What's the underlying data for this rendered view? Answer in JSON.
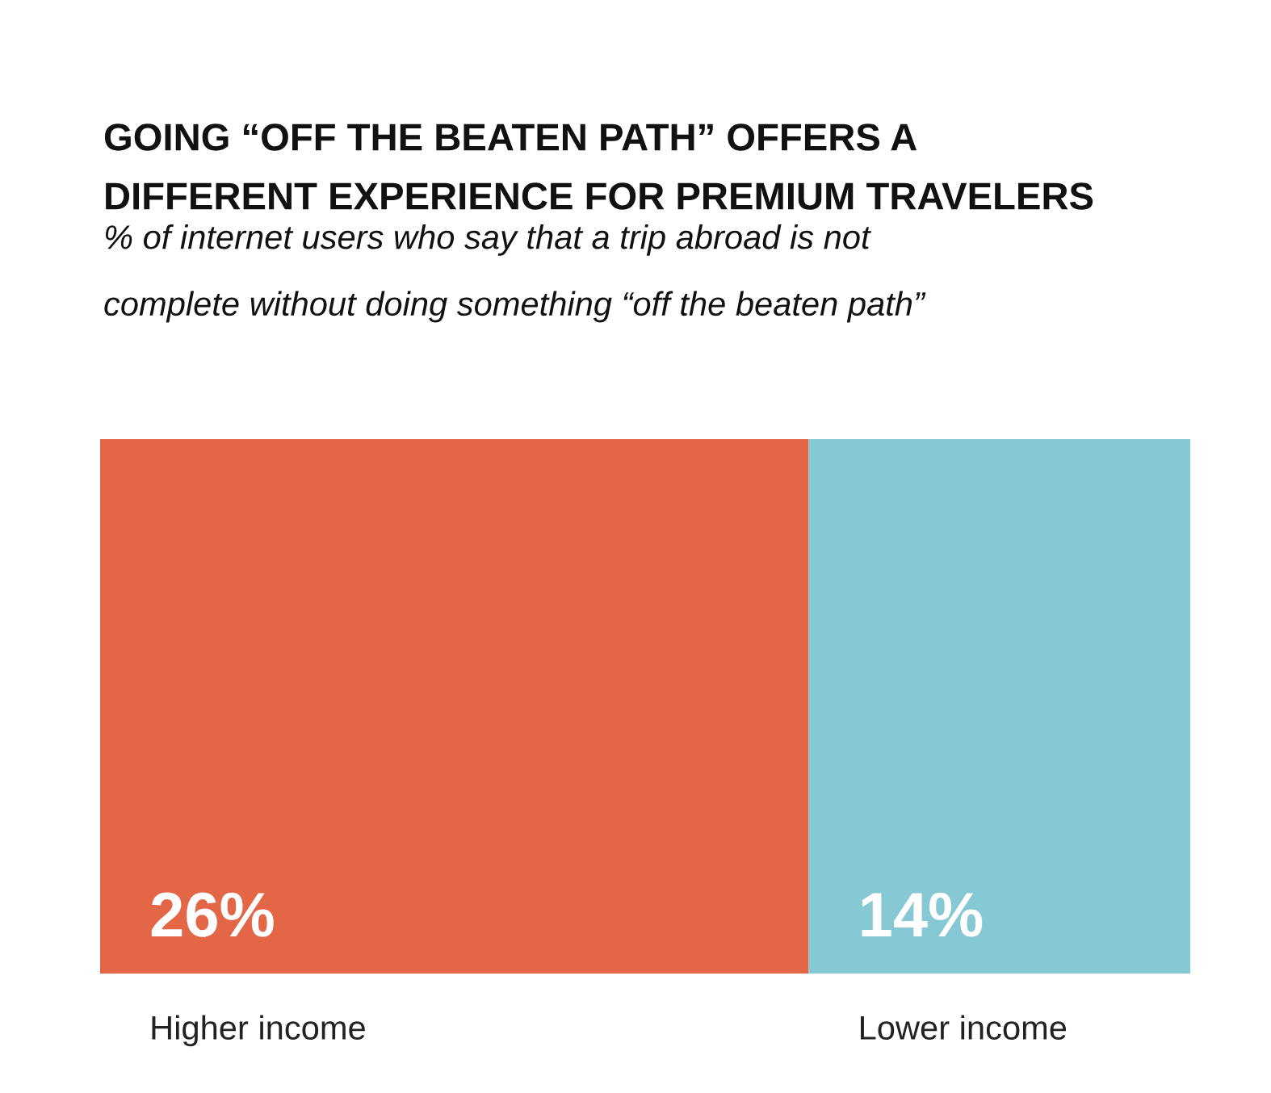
{
  "chart_data": {
    "type": "bar",
    "orientation": "horizontal",
    "stacked": true,
    "title": "GOING “OFF THE BEATEN PATH” OFFERS A DIFFERENT EXPERIENCE FOR PREMIUM TRAVELERS",
    "subtitle": "% of internet users who say that a trip abroad is not complete without doing something “off the beaten path”",
    "categories": [
      null
    ],
    "series": [
      {
        "name": "Higher income",
        "color": "#e36646",
        "values": [
          26
        ],
        "value_labels": [
          "26%"
        ]
      },
      {
        "name": "Lower income",
        "color": "#86c8d3",
        "values": [
          14
        ],
        "value_labels": [
          "14%"
        ]
      }
    ],
    "xlim": [
      0,
      40
    ],
    "tick_labels": false
  }
}
